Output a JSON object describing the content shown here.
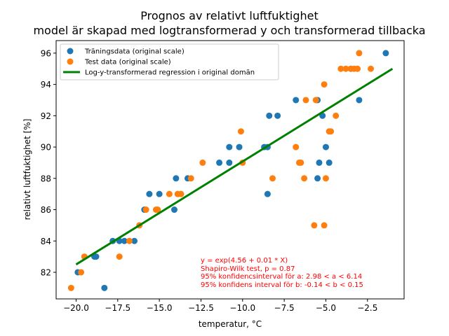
{
  "chart_data": {
    "type": "scatter",
    "title": "Prognos av relativt luftfuktighet",
    "subtitle": "model är skapad med logtransformerad y och transformerad tillbacka",
    "xlabel": "temperatur, °C",
    "ylabel": "relativt luftfuktighet [%]",
    "xlim": [
      -21.2,
      -0.3
    ],
    "ylim": [
      80.3,
      96.8
    ],
    "xticks": [
      -20.0,
      -17.5,
      -15.0,
      -12.5,
      -10.0,
      -7.5,
      -5.0,
      -2.5
    ],
    "xtick_labels": [
      "−20.0",
      "−17.5",
      "−15.0",
      "−12.5",
      "−10.0",
      "−7.5",
      "−5.0",
      "−2.5"
    ],
    "yticks": [
      82,
      84,
      86,
      88,
      90,
      92,
      94,
      96
    ],
    "ytick_labels": [
      "82",
      "84",
      "86",
      "88",
      "90",
      "92",
      "94",
      "96"
    ],
    "grid": false,
    "legend_position": "top-left",
    "series": [
      {
        "name": "Träningsdata (original scale)",
        "kind": "scatter",
        "color": "#1f77b4",
        "points": [
          [
            -19.9,
            82
          ],
          [
            -18.9,
            83
          ],
          [
            -18.8,
            83
          ],
          [
            -18.3,
            81
          ],
          [
            -17.8,
            84
          ],
          [
            -17.4,
            84
          ],
          [
            -17.1,
            84
          ],
          [
            -16.5,
            84
          ],
          [
            -15.9,
            86
          ],
          [
            -15.6,
            87
          ],
          [
            -15.0,
            87
          ],
          [
            -14.1,
            86
          ],
          [
            -14.0,
            88
          ],
          [
            -13.3,
            88
          ],
          [
            -11.4,
            89
          ],
          [
            -10.8,
            89
          ],
          [
            -10.8,
            90
          ],
          [
            -10.2,
            90
          ],
          [
            -8.7,
            90
          ],
          [
            -8.5,
            90
          ],
          [
            -8.5,
            87
          ],
          [
            -8.4,
            92
          ],
          [
            -7.9,
            92
          ],
          [
            -6.8,
            93
          ],
          [
            -5.5,
            93
          ],
          [
            -5.5,
            88
          ],
          [
            -5.4,
            89
          ],
          [
            -5.2,
            92
          ],
          [
            -5.0,
            90
          ],
          [
            -4.8,
            89
          ],
          [
            -3.5,
            95
          ],
          [
            -3.0,
            93
          ],
          [
            -1.4,
            96
          ]
        ]
      },
      {
        "name": "Test data (original scale)",
        "kind": "scatter",
        "color": "#ff7f0e",
        "points": [
          [
            -20.3,
            81
          ],
          [
            -19.7,
            82
          ],
          [
            -19.5,
            83
          ],
          [
            -17.4,
            83
          ],
          [
            -16.8,
            84
          ],
          [
            -16.2,
            85
          ],
          [
            -15.8,
            86
          ],
          [
            -15.2,
            86
          ],
          [
            -15.1,
            86
          ],
          [
            -14.4,
            87
          ],
          [
            -13.9,
            87
          ],
          [
            -13.7,
            87
          ],
          [
            -13.1,
            88
          ],
          [
            -12.4,
            89
          ],
          [
            -10.1,
            91
          ],
          [
            -10.0,
            89
          ],
          [
            -8.2,
            88
          ],
          [
            -6.8,
            90
          ],
          [
            -6.6,
            89
          ],
          [
            -6.5,
            89
          ],
          [
            -6.3,
            88
          ],
          [
            -6.2,
            93
          ],
          [
            -5.7,
            85
          ],
          [
            -5.6,
            93
          ],
          [
            -5.1,
            94
          ],
          [
            -5.1,
            85
          ],
          [
            -5.0,
            88
          ],
          [
            -4.8,
            91
          ],
          [
            -4.7,
            91
          ],
          [
            -4.4,
            92
          ],
          [
            -4.1,
            95
          ],
          [
            -3.8,
            95
          ],
          [
            -3.5,
            95
          ],
          [
            -3.3,
            95
          ],
          [
            -3.1,
            95
          ],
          [
            -3.0,
            96
          ],
          [
            -2.3,
            95
          ]
        ]
      },
      {
        "name": "Log-y-transformerad regression i original domän",
        "kind": "line",
        "color": "#008000",
        "points": [
          [
            -20.0,
            82.5
          ],
          [
            -1.0,
            95.0
          ]
        ]
      }
    ],
    "annotations": [
      "y = exp(4.56 + 0.01 * X)",
      "Shapiro-Wilk test, p = 0.87",
      "95% konfidencsinterval för a: 2.98 < a < 6.14",
      "95% konfidens interval för b: -0.14 < b < 0.15"
    ],
    "annotation_color": "#ff0000"
  }
}
